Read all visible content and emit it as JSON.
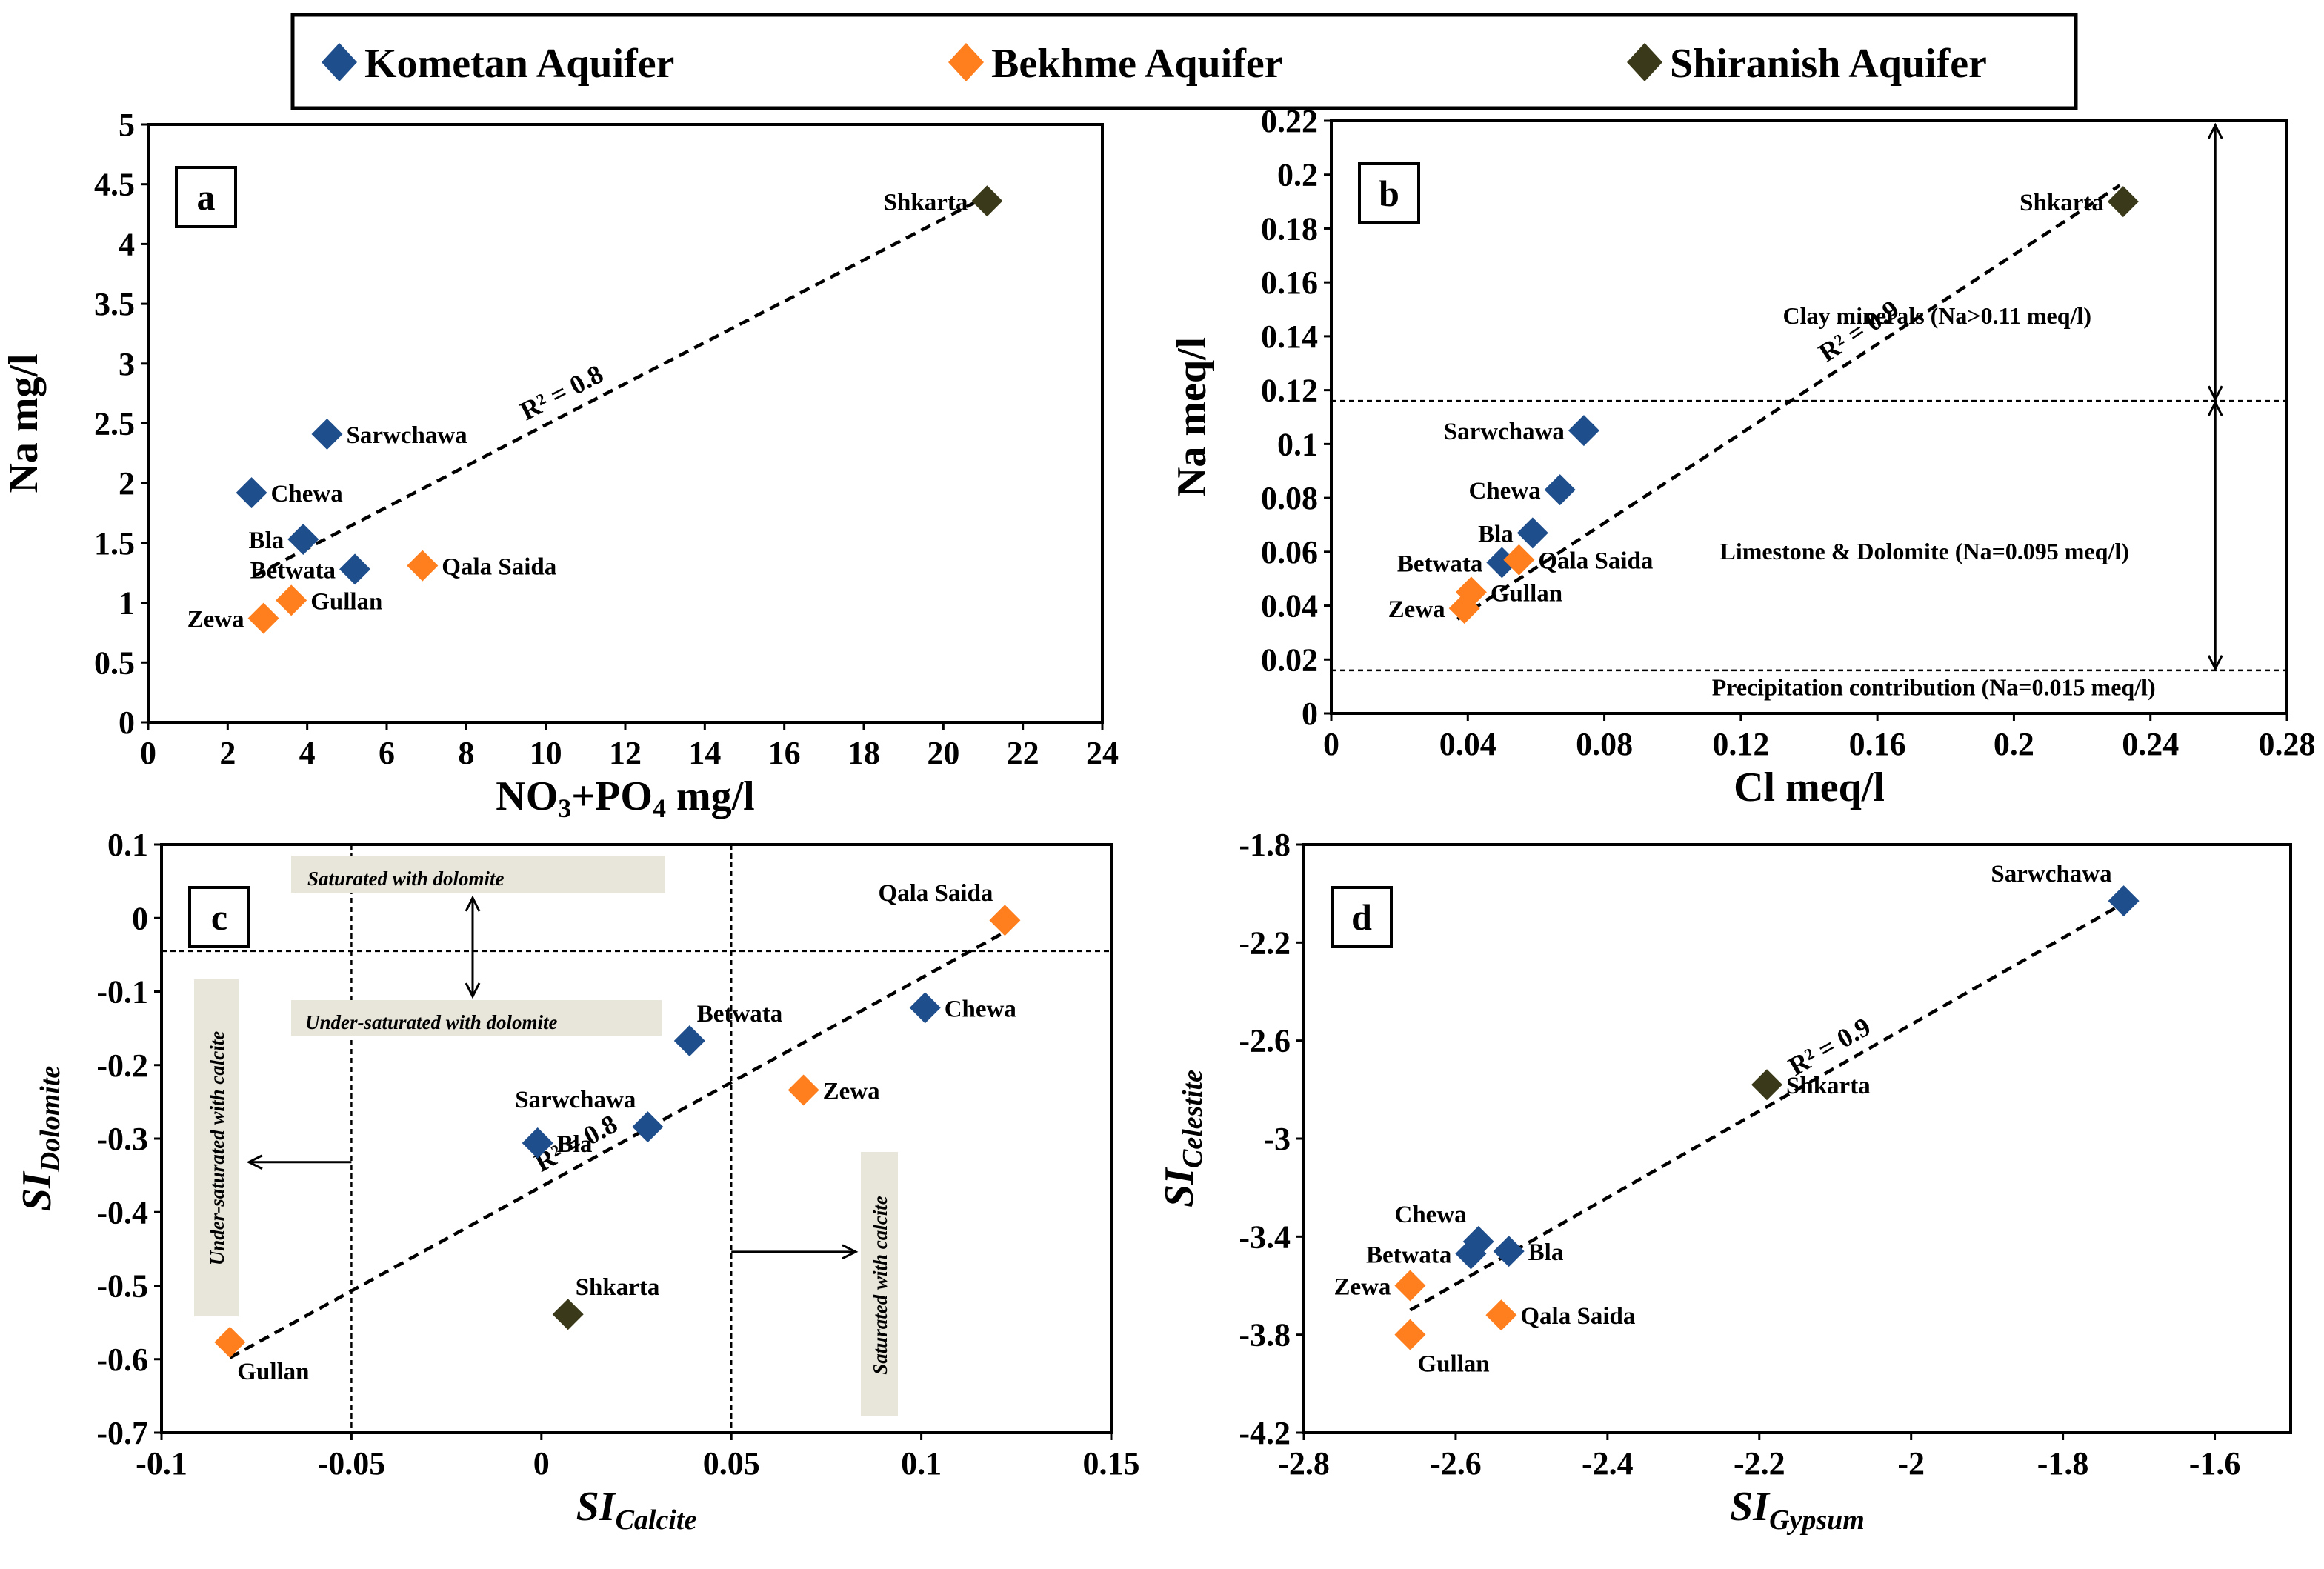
{
  "legend": [
    {
      "name": "Kometan Aquifer",
      "color": "#1F4E8C"
    },
    {
      "name": "Bekhme Aquifer",
      "color": "#FF7F1E"
    },
    {
      "name": "Shiranish Aquifer",
      "color": "#3A3A1A"
    }
  ],
  "chart_data": [
    {
      "id": "a",
      "type": "scatter",
      "panel_label": "a",
      "xlabel_main": "NO",
      "xlabel_sub1": "3",
      "xlabel_mid": "+PO",
      "xlabel_sub2": "4",
      "xlabel_end": " mg/l",
      "ylabel": "Na mg/l",
      "xlim": [
        0,
        24
      ],
      "ylim": [
        0,
        5
      ],
      "xticks": [
        0,
        2,
        4,
        6,
        8,
        10,
        12,
        14,
        16,
        18,
        20,
        22,
        24
      ],
      "yticks": [
        0,
        0.5,
        1,
        1.5,
        2,
        2.5,
        3,
        3.5,
        4,
        4.5,
        5
      ],
      "ytick_labels": [
        "0",
        "0.5",
        "1",
        "1.5",
        "2",
        "2.5",
        "3",
        "3.5",
        "4",
        "4.5",
        "5"
      ],
      "trendline": {
        "x": [
          2.7,
          21.1
        ],
        "y": [
          1.23,
          4.4
        ],
        "label": "R² = 0.8"
      },
      "points": [
        {
          "name": "Shkarta",
          "x": 21.1,
          "y": 4.36,
          "aquifer": "Shiranish",
          "label_pos": "left"
        },
        {
          "name": "Sarwchawa",
          "x": 4.5,
          "y": 2.41,
          "aquifer": "Kometan",
          "label_pos": "right"
        },
        {
          "name": "Chewa",
          "x": 2.6,
          "y": 1.92,
          "aquifer": "Kometan",
          "label_pos": "right"
        },
        {
          "name": "Bla",
          "x": 3.9,
          "y": 1.53,
          "aquifer": "Kometan",
          "label_pos": "left"
        },
        {
          "name": "Betwata",
          "x": 5.2,
          "y": 1.28,
          "aquifer": "Kometan",
          "label_pos": "left"
        },
        {
          "name": "Qala Saida",
          "x": 6.9,
          "y": 1.31,
          "aquifer": "Bekhme",
          "label_pos": "right"
        },
        {
          "name": "Gullan",
          "x": 3.6,
          "y": 1.02,
          "aquifer": "Bekhme",
          "label_pos": "right"
        },
        {
          "name": "Zewa",
          "x": 2.9,
          "y": 0.87,
          "aquifer": "Bekhme",
          "label_pos": "left"
        }
      ]
    },
    {
      "id": "b",
      "type": "scatter",
      "panel_label": "b",
      "xlabel": "Cl meq/l",
      "ylabel": "Na meq/l",
      "xlim": [
        0,
        0.28
      ],
      "ylim": [
        0,
        0.22
      ],
      "xticks": [
        0,
        0.04,
        0.08,
        0.12,
        0.16,
        0.2,
        0.24,
        0.28
      ],
      "xtick_labels": [
        "0",
        "0.04",
        "0.08",
        "0.12",
        "0.16",
        "0.2",
        "0.24",
        "0.28"
      ],
      "yticks": [
        0,
        0.02,
        0.04,
        0.06,
        0.08,
        0.1,
        0.12,
        0.14,
        0.16,
        0.18,
        0.2,
        0.22
      ],
      "ytick_labels": [
        "0",
        "0.02",
        "0.04",
        "0.06",
        "0.08",
        "0.1",
        "0.12",
        "0.14",
        "0.16",
        "0.18",
        "0.2",
        "0.22"
      ],
      "trendline": {
        "x": [
          0.037,
          0.231
        ],
        "y": [
          0.035,
          0.196
        ],
        "label": "R² = 0.9"
      },
      "hlines": [
        0.116,
        0.016
      ],
      "arrow_x": 0.259,
      "annotations": [
        "Clay minerals (Na>0.11 meq/l)",
        "Limestone & Dolomite (Na=0.095 meq/l)",
        "Precipitation contribution (Na=0.015 meq/l)"
      ],
      "points": [
        {
          "name": "Shkarta",
          "x": 0.232,
          "y": 0.19,
          "aquifer": "Shiranish",
          "label_pos": "left"
        },
        {
          "name": "Sarwchawa",
          "x": 0.074,
          "y": 0.105,
          "aquifer": "Kometan",
          "label_pos": "left"
        },
        {
          "name": "Chewa",
          "x": 0.067,
          "y": 0.083,
          "aquifer": "Kometan",
          "label_pos": "left"
        },
        {
          "name": "Bla",
          "x": 0.059,
          "y": 0.067,
          "aquifer": "Kometan",
          "label_pos": "left"
        },
        {
          "name": "Betwata",
          "x": 0.05,
          "y": 0.056,
          "aquifer": "Kometan",
          "label_pos": "left"
        },
        {
          "name": "Qala Saida",
          "x": 0.055,
          "y": 0.057,
          "aquifer": "Bekhme",
          "label_pos": "right"
        },
        {
          "name": "Gullan",
          "x": 0.041,
          "y": 0.045,
          "aquifer": "Bekhme",
          "label_pos": "right"
        },
        {
          "name": "Zewa",
          "x": 0.039,
          "y": 0.039,
          "aquifer": "Bekhme",
          "label_pos": "left"
        }
      ]
    },
    {
      "id": "c",
      "type": "scatter",
      "panel_label": "c",
      "xlabel": "SI",
      "xlabel_sub": "Calcite",
      "ylabel": "SI",
      "ylabel_sub": "Dolomite",
      "xlim": [
        -0.1,
        0.15
      ],
      "ylim": [
        -0.7,
        0.1
      ],
      "xticks": [
        -0.1,
        -0.05,
        0,
        0.05,
        0.1,
        0.15
      ],
      "xtick_labels": [
        "-0.1",
        "-0.05",
        "0",
        "0.05",
        "0.1",
        "0.15"
      ],
      "yticks": [
        -0.7,
        -0.6,
        -0.5,
        -0.4,
        -0.3,
        -0.2,
        -0.1,
        0,
        0.1
      ],
      "ytick_labels": [
        "-0.7",
        "-0.6",
        "-0.5",
        "-0.4",
        "-0.3",
        "-0.2",
        "-0.1",
        "0",
        "0.1"
      ],
      "trendline": {
        "x": [
          -0.082,
          0.121
        ],
        "y": [
          -0.598,
          -0.022
        ],
        "label": "R² = 0.8"
      },
      "hline": -0.045,
      "vlines": [
        -0.05,
        0.05
      ],
      "annotations": {
        "saturated_dolomite": "Saturated with dolomite",
        "undersaturated_dolomite": "Under-saturated with dolomite",
        "undersaturated_calcite": "Under-saturated with calcite",
        "saturated_calcite": "Saturated with calcite"
      },
      "points": [
        {
          "name": "Qala Saida",
          "x": 0.122,
          "y": -0.003,
          "aquifer": "Bekhme",
          "label_pos": "topleft"
        },
        {
          "name": "Chewa",
          "x": 0.101,
          "y": -0.122,
          "aquifer": "Kometan",
          "label_pos": "right"
        },
        {
          "name": "Betwata",
          "x": 0.039,
          "y": -0.167,
          "aquifer": "Kometan",
          "label_pos": "topright"
        },
        {
          "name": "Zewa",
          "x": 0.069,
          "y": -0.234,
          "aquifer": "Bekhme",
          "label_pos": "right"
        },
        {
          "name": "Sarwchawa",
          "x": 0.028,
          "y": -0.284,
          "aquifer": "Kometan",
          "label_pos": "topleft"
        },
        {
          "name": "Bla",
          "x": -0.001,
          "y": -0.306,
          "aquifer": "Kometan",
          "label_pos": "right"
        },
        {
          "name": "Shkarta",
          "x": 0.007,
          "y": -0.539,
          "aquifer": "Shiranish",
          "label_pos": "topright"
        },
        {
          "name": "Gullan",
          "x": -0.082,
          "y": -0.577,
          "aquifer": "Bekhme",
          "label_pos": "below"
        }
      ]
    },
    {
      "id": "d",
      "type": "scatter",
      "panel_label": "d",
      "xlabel": "SI",
      "xlabel_sub": "Gypsum",
      "ylabel": "SI",
      "ylabel_sub": "Celestite",
      "xlim": [
        -2.8,
        -1.5
      ],
      "ylim": [
        -4.2,
        -1.8
      ],
      "xticks": [
        -2.8,
        -2.6,
        -2.4,
        -2.2,
        -2.0,
        -1.8,
        -1.6
      ],
      "xtick_labels": [
        "-2.8",
        "-2.6",
        "-2.4",
        "-2.2",
        "-2",
        "-1.8",
        "-1.6"
      ],
      "yticks": [
        -4.2,
        -3.8,
        -3.4,
        -3.0,
        -2.6,
        -2.2,
        -1.8
      ],
      "ytick_labels": [
        "-4.2",
        "-3.8",
        "-3.4",
        "-3",
        "-2.6",
        "-2.2",
        "-1.8"
      ],
      "trendline": {
        "x": [
          -2.66,
          -1.72
        ],
        "y": [
          -3.7,
          -2.04
        ],
        "label": "R² = 0.9"
      },
      "points": [
        {
          "name": "Sarwchawa",
          "x": -1.72,
          "y": -2.03,
          "aquifer": "Kometan",
          "label_pos": "topleft"
        },
        {
          "name": "Shkarta",
          "x": -2.19,
          "y": -2.78,
          "aquifer": "Shiranish",
          "label_pos": "right"
        },
        {
          "name": "Chewa",
          "x": -2.57,
          "y": -3.42,
          "aquifer": "Kometan",
          "label_pos": "topleft"
        },
        {
          "name": "Betwata",
          "x": -2.58,
          "y": -3.47,
          "aquifer": "Kometan",
          "label_pos": "left"
        },
        {
          "name": "Bla",
          "x": -2.53,
          "y": -3.46,
          "aquifer": "Kometan",
          "label_pos": "right"
        },
        {
          "name": "Zewa",
          "x": -2.66,
          "y": -3.6,
          "aquifer": "Bekhme",
          "label_pos": "left"
        },
        {
          "name": "Qala Saida",
          "x": -2.54,
          "y": -3.72,
          "aquifer": "Bekhme",
          "label_pos": "right"
        },
        {
          "name": "Gullan",
          "x": -2.66,
          "y": -3.8,
          "aquifer": "Bekhme",
          "label_pos": "below"
        }
      ]
    }
  ]
}
